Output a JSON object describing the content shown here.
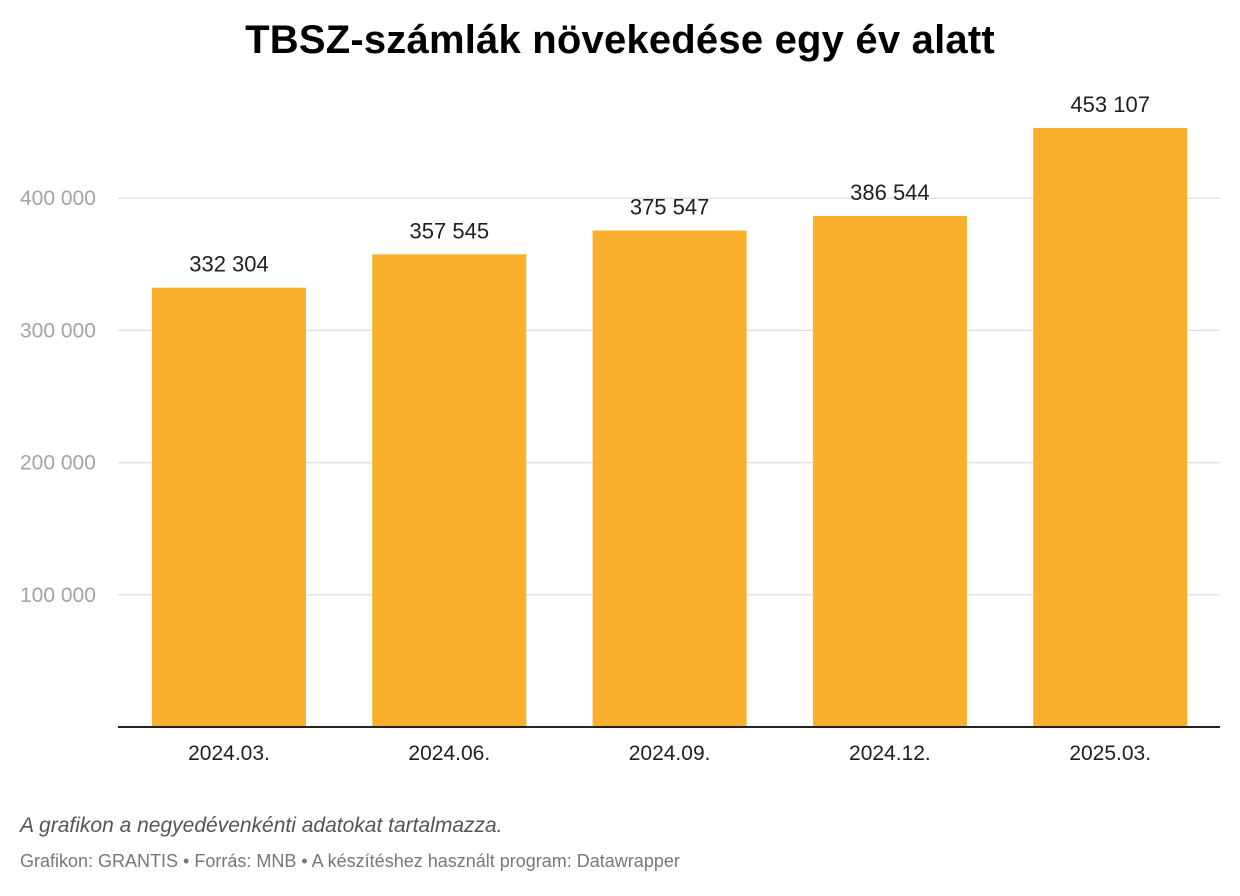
{
  "chart_data": {
    "type": "bar",
    "title": "TBSZ-számlák növekedése egy év alatt",
    "categories": [
      "2024.03.",
      "2024.06.",
      "2024.09.",
      "2024.12.",
      "2025.03."
    ],
    "values": [
      332304,
      357545,
      375547,
      386544,
      453107
    ],
    "value_labels": [
      "332 304",
      "357 545",
      "375 547",
      "386 544",
      "453 107"
    ],
    "y_ticks": [
      100000,
      200000,
      300000,
      400000
    ],
    "y_tick_labels": [
      "100 000",
      "200 000",
      "300 000",
      "400 000"
    ],
    "ylim": [
      0,
      453107
    ],
    "xlabel": "",
    "ylabel": "",
    "grid": true,
    "bar_color": "#fbb02d",
    "grid_color": "#e3e3e3",
    "axis_color": "#222222"
  },
  "notes": {
    "description": "A grafikon a negyedévenkénti adatokat tartalmazza.",
    "footer": "Grafikon: GRANTIS • Forrás: MNB • A készítéshez használt program: Datawrapper"
  }
}
